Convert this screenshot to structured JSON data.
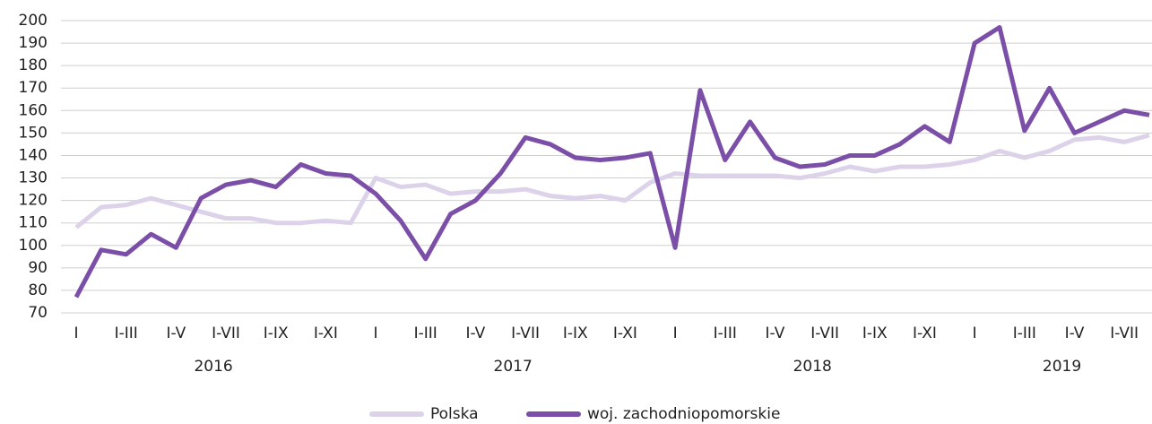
{
  "chart_data": {
    "type": "line",
    "categories": [
      "I",
      null,
      "I-III",
      null,
      "I-V",
      null,
      "I-VII",
      null,
      "I-IX",
      null,
      "I-XI",
      null,
      "I",
      null,
      "I-III",
      null,
      "I-V",
      null,
      "I-VII",
      null,
      "I-IX",
      null,
      "I-XI",
      null,
      "I",
      null,
      "I-III",
      null,
      "I-V",
      null,
      "I-VII",
      null,
      "I-IX",
      null,
      "I-XI",
      null,
      "I",
      null,
      "I-III",
      null,
      "I-V",
      null,
      "I-VII",
      null
    ],
    "x_groups": [
      "2016",
      "2017",
      "2018",
      "2019"
    ],
    "series": [
      {
        "name": "Polska",
        "color": "#dcd3ea",
        "values": [
          108,
          117,
          118,
          121,
          118,
          115,
          112,
          112,
          110,
          110,
          111,
          110,
          130,
          126,
          127,
          123,
          124,
          124,
          125,
          122,
          121,
          122,
          120,
          128,
          132,
          131,
          131,
          131,
          131,
          130,
          132,
          135,
          133,
          135,
          135,
          136,
          138,
          142,
          139,
          142,
          147,
          148,
          146,
          149
        ]
      },
      {
        "name": "woj. zachodniopomorskie",
        "color": "#7b4fa8",
        "values": [
          77,
          98,
          96,
          105,
          99,
          121,
          127,
          129,
          126,
          136,
          132,
          131,
          123,
          111,
          94,
          114,
          120,
          132,
          148,
          145,
          139,
          138,
          139,
          141,
          99,
          169,
          138,
          155,
          139,
          135,
          136,
          140,
          140,
          145,
          153,
          146,
          190,
          197,
          151,
          170,
          150,
          155,
          160,
          158
        ]
      }
    ],
    "ylim": [
      70,
      200
    ],
    "yticks": [
      70,
      80,
      90,
      100,
      110,
      120,
      130,
      140,
      150,
      160,
      170,
      180,
      190,
      200
    ],
    "grid": true,
    "legend": "bottom"
  }
}
